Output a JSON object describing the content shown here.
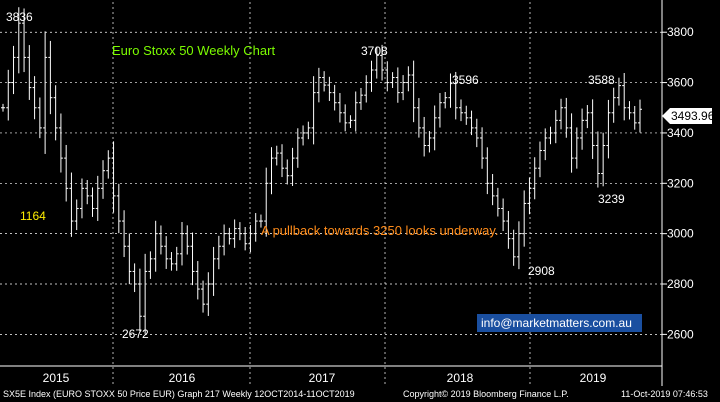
{
  "chart_data": {
    "type": "line",
    "style": "ohlc-bars",
    "title": "Euro Stoxx 50 Weekly Chart",
    "xlabel": "",
    "ylabel": "",
    "y_axis_position": "right",
    "ylim": [
      2530,
      3920
    ],
    "yticks": [
      2600,
      2800,
      3000,
      3200,
      3400,
      3600,
      3800
    ],
    "x_labels": [
      "2015",
      "2016",
      "2017",
      "2018",
      "2019"
    ],
    "grid": true,
    "last_price": "3493.96",
    "annotations": {
      "price_3836": "3836",
      "price_1164": "1164",
      "price_3708": "3708",
      "price_3596": "3596",
      "price_3588": "3588",
      "price_3239": "3239",
      "price_2908": "2908",
      "price_2672": "2672",
      "comment": "A pullback towards 3250 looks underway.",
      "email": "info@marketmatters.com.au"
    },
    "series": [
      {
        "values": [
          3500,
          3600,
          3700,
          3836,
          3700,
          3580,
          3500,
          3420,
          3700,
          3540,
          3420,
          3300,
          3180,
          3050,
          3100,
          3180,
          3150,
          3100,
          3180,
          3250,
          3300,
          3150,
          3050,
          2950,
          2850,
          2800,
          2672,
          2850,
          2900,
          3000,
          2950,
          2900,
          2880,
          2920,
          3000,
          2950,
          2850,
          2780,
          2720,
          2800,
          2900,
          2950,
          3000,
          2980,
          3020,
          3000,
          2960,
          3000,
          3050,
          3050,
          3200,
          3300,
          3320,
          3260,
          3230,
          3300,
          3380,
          3400,
          3420,
          3560,
          3620,
          3590,
          3560,
          3520,
          3480,
          3440,
          3450,
          3520,
          3550,
          3600,
          3650,
          3708,
          3650,
          3600,
          3620,
          3560,
          3600,
          3630,
          3500,
          3420,
          3350,
          3380,
          3460,
          3520,
          3540,
          3596,
          3500,
          3480,
          3460,
          3420,
          3380,
          3300,
          3200,
          3150,
          3100,
          3050,
          2980,
          2908,
          3000,
          3120,
          3180,
          3260,
          3330,
          3380,
          3400,
          3450,
          3500,
          3420,
          3300,
          3380,
          3450,
          3480,
          3350,
          3239,
          3350,
          3480,
          3540,
          3588,
          3500,
          3480,
          3440,
          3493.96
        ]
      }
    ]
  },
  "footer": {
    "left": "SX5E Index (EURO STOXX 50 Price EUR) Graph 217  Weekly 12OCT2014-11OCT2019",
    "middle": "Copyright© 2019 Bloomberg Finance L.P.",
    "right": "11-Oct-2019 07:46:53"
  },
  "colors": {
    "background": "#000000",
    "bars": "#ffffff",
    "grid": "#ffffff",
    "title": "#7cfc00",
    "comment": "#ff8c1a",
    "price_1164": "#ffee00",
    "email_box": "#1a4fa0",
    "last_price_box": "#ffffff"
  }
}
